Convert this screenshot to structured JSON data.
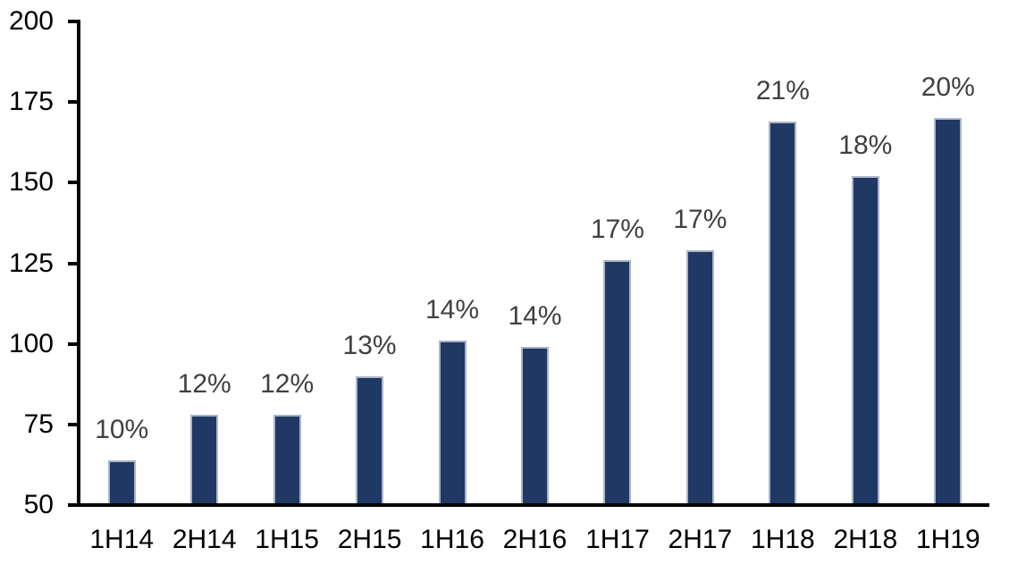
{
  "chart_data": {
    "type": "bar",
    "title": "",
    "xlabel": "",
    "ylabel": "",
    "categories": [
      "1H14",
      "2H14",
      "1H15",
      "2H15",
      "1H16",
      "2H16",
      "1H17",
      "2H17",
      "1H18",
      "2H18",
      "1H19"
    ],
    "values": [
      64,
      78,
      78,
      90,
      101,
      99,
      126,
      129,
      169,
      152,
      170
    ],
    "bar_labels": [
      "10%",
      "12%",
      "12%",
      "13%",
      "14%",
      "14%",
      "17%",
      "17%",
      "21%",
      "18%",
      "20%"
    ],
    "ylim": [
      50,
      200
    ],
    "yticks": [
      50,
      75,
      100,
      125,
      150,
      175,
      200
    ],
    "grid": false,
    "legend": "none",
    "colors": {
      "bar_fill": "#1F3864",
      "bar_border": "#A9B5C6",
      "value_label": "#404040",
      "axis": "#000000",
      "axis_text": "#000000",
      "background": "#FFFFFF"
    }
  }
}
